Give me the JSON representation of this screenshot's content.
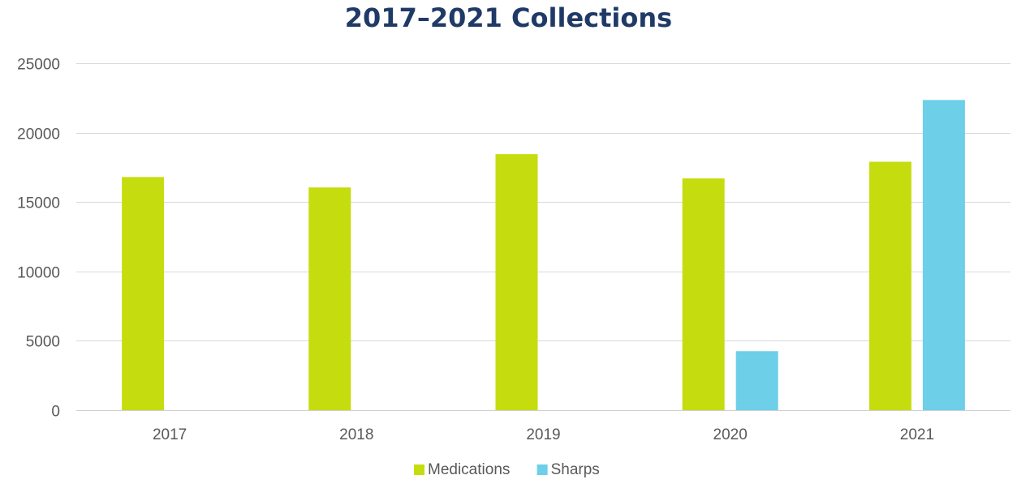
{
  "chart_data": {
    "type": "bar",
    "title": "2017–2021 Collections",
    "categories": [
      "2017",
      "2018",
      "2019",
      "2020",
      "2021"
    ],
    "series": [
      {
        "name": "Medications",
        "color": "#c5dd0f",
        "values": [
          16800,
          16050,
          18450,
          16700,
          17900
        ]
      },
      {
        "name": "Sharps",
        "color": "#6dcfe8",
        "values": [
          0,
          0,
          0,
          4250,
          22350
        ]
      }
    ],
    "ylim": [
      0,
      25000
    ],
    "yticks": [
      0,
      5000,
      10000,
      15000,
      20000,
      25000
    ],
    "grid": true,
    "legend_position": "bottom"
  }
}
